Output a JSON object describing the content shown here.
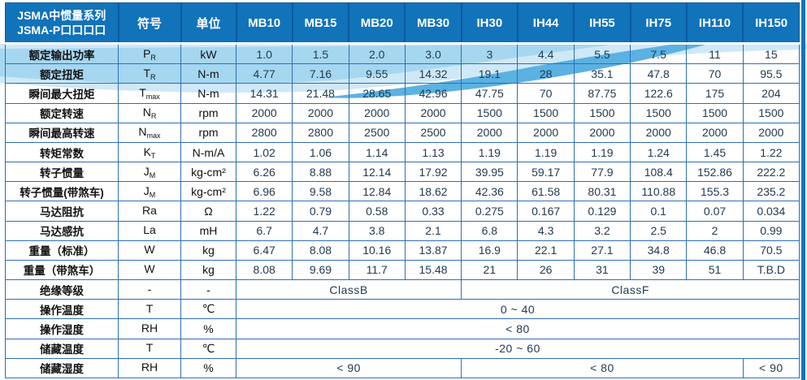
{
  "table": {
    "title_line1": "JSMA中惯量系列",
    "title_line2": "JSMA-P口口口口",
    "col_symbol": "符号",
    "col_unit": "单位",
    "models": [
      "MB10",
      "MB15",
      "MB20",
      "MB30",
      "IH30",
      "IH44",
      "IH55",
      "IH75",
      "IH110",
      "IH150"
    ],
    "rows": [
      {
        "label": "额定输出功率",
        "sym": "P",
        "sub": "R",
        "unit": "kW",
        "values": [
          "1.0",
          "1.5",
          "2.0",
          "3.0",
          "3",
          "4.4",
          "5.5",
          "7.5",
          "11",
          "15"
        ]
      },
      {
        "label": "额定扭矩",
        "sym": "T",
        "sub": "R",
        "unit": "N-m",
        "values": [
          "4.77",
          "7.16",
          "9.55",
          "14.32",
          "19.1",
          "28",
          "35.1",
          "47.8",
          "70",
          "95.5"
        ]
      },
      {
        "label": "瞬间最大扭矩",
        "sym": "T",
        "sub": "max",
        "unit": "N-m",
        "values": [
          "14.31",
          "21.48",
          "28.65",
          "42.96",
          "47.75",
          "70",
          "87.75",
          "122.6",
          "175",
          "204"
        ]
      },
      {
        "label": "额定转速",
        "sym": "N",
        "sub": "R",
        "unit": "rpm",
        "values": [
          "2000",
          "2000",
          "2000",
          "2000",
          "1500",
          "1500",
          "1500",
          "1500",
          "1500",
          "1500"
        ]
      },
      {
        "label": "瞬间最高转速",
        "sym": "N",
        "sub": "max",
        "unit": "rpm",
        "values": [
          "2800",
          "2800",
          "2500",
          "2500",
          "2000",
          "2000",
          "2000",
          "2000",
          "2000",
          "2000"
        ]
      },
      {
        "label": "转矩常数",
        "sym": "K",
        "sub": "T",
        "unit": "N-m/A",
        "values": [
          "1.02",
          "1.06",
          "1.14",
          "1.13",
          "1.19",
          "1.19",
          "1.19",
          "1.24",
          "1.45",
          "1.22"
        ]
      },
      {
        "label": "转子惯量",
        "sym": "J",
        "sub": "M",
        "unit": "kg-cm²",
        "values": [
          "6.26",
          "8.88",
          "12.14",
          "17.92",
          "39.95",
          "59.17",
          "77.9",
          "108.4",
          "152.86",
          "222.2"
        ]
      },
      {
        "label": "转子惯量(带煞车)",
        "sym": "J",
        "sub": "M",
        "unit": "kg-cm²",
        "values": [
          "6.96",
          "9.58",
          "12.84",
          "18.62",
          "42.36",
          "61.58",
          "80.31",
          "110.88",
          "155.3",
          "235.2"
        ]
      },
      {
        "label": "马达阻抗",
        "sym": "Ra",
        "sub": "",
        "unit": "Ω",
        "values": [
          "1.22",
          "0.79",
          "0.58",
          "0.33",
          "0.275",
          "0.167",
          "0.129",
          "0.1",
          "0.07",
          "0.034"
        ]
      },
      {
        "label": "马达感抗",
        "sym": "La",
        "sub": "",
        "unit": "mH",
        "values": [
          "6.7",
          "4.7",
          "3.8",
          "2.1",
          "6.8",
          "4.3",
          "3.2",
          "2.5",
          "2",
          "0.99"
        ]
      },
      {
        "label": "重量（标准）",
        "sym": "W",
        "sub": "",
        "unit": "kg",
        "values": [
          "6.47",
          "8.08",
          "10.16",
          "13.87",
          "16.9",
          "22.1",
          "27.1",
          "34.8",
          "46.8",
          "70.5"
        ]
      },
      {
        "label": "重量（带煞车）",
        "sym": "W",
        "sub": "",
        "unit": "kg",
        "values": [
          "8.08",
          "9.69",
          "11.7",
          "15.48",
          "21",
          "26",
          "31",
          "39",
          "51",
          "T.B.D"
        ]
      },
      {
        "label": "绝缘等级",
        "sym": "-",
        "sub": "",
        "unit": "-",
        "spans": [
          {
            "text": "ClassB",
            "span": 4
          },
          {
            "text": "ClassF",
            "span": 6
          }
        ]
      },
      {
        "label": "操作温度",
        "sym": "T",
        "sub": "",
        "unit": "℃",
        "spans": [
          {
            "text": "0 ~ 40",
            "span": 10
          }
        ]
      },
      {
        "label": "操作湿度",
        "sym": "RH",
        "sub": "",
        "unit": "%",
        "spans": [
          {
            "text": "< 80",
            "span": 10
          }
        ]
      },
      {
        "label": "储藏温度",
        "sym": "T",
        "sub": "",
        "unit": "℃",
        "spans": [
          {
            "text": "-20 ~ 60",
            "span": 10
          }
        ]
      },
      {
        "label": "储藏湿度",
        "sym": "RH",
        "sub": "",
        "unit": "%",
        "spans": [
          {
            "text": "< 90",
            "span": 4
          },
          {
            "text": "< 80",
            "span": 5
          },
          {
            "text": "< 90",
            "span": 1
          }
        ]
      }
    ]
  },
  "colors": {
    "header_bg": "#1173BA",
    "header_divider": "#0b589e",
    "border": "#2e6fb3",
    "label_text": "#111111",
    "value_text": "#223a50",
    "wave_light": "#cfe8f7",
    "wave_mid": "#a6d7f0",
    "wave_dark": "#5bb1e1",
    "strip": "#1173BA"
  }
}
